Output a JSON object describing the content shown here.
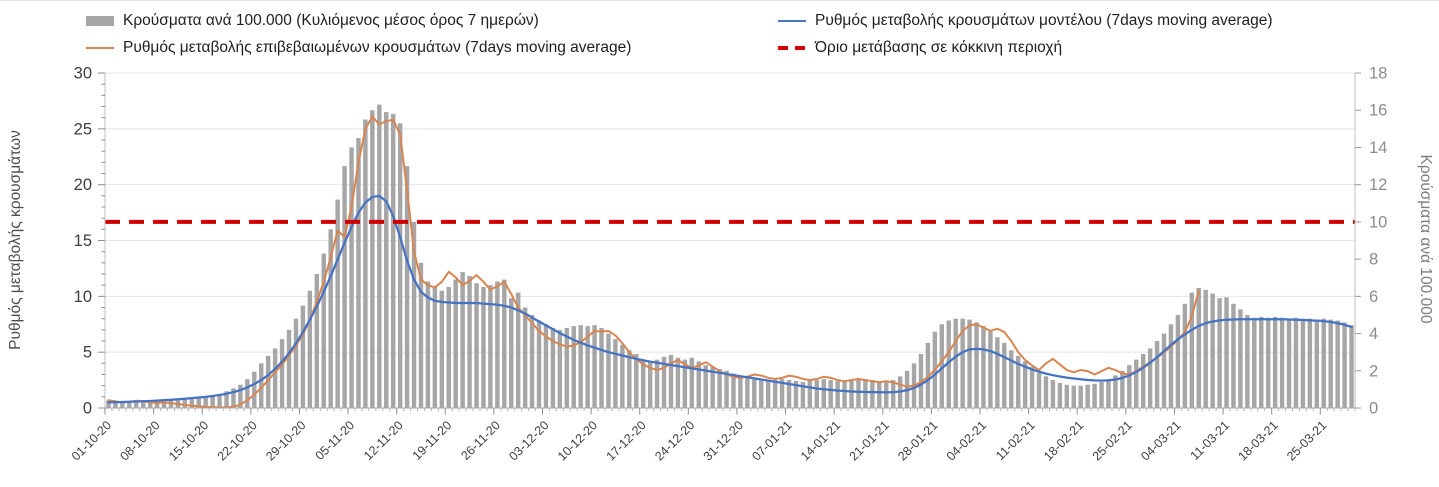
{
  "chart": {
    "legend": [
      {
        "label": "Κρούσματα ανά 100.000 (Κυλιόμενος μέσος όρος 7 ημερών)",
        "type": "bar",
        "color": "#a6a6a6"
      },
      {
        "label": "Ρυθμός μεταβολής επιβεβαιωμένων κρουσμάτων (7days moving average)",
        "type": "line",
        "color": "#d9854f"
      },
      {
        "label": "Ρυθμός μεταβολής κρουσμάτων μοντέλου (7days moving average)",
        "type": "line",
        "color": "#4472c4"
      },
      {
        "label": "Όριο μετάβασης σε κόκκινη περιοχή",
        "type": "dashed",
        "color": "#d00000"
      }
    ],
    "left_axis": {
      "title": "Ρυθμός μεταβολής κρουσμάτων",
      "ticks": [
        0,
        5,
        10,
        15,
        20,
        25,
        30
      ]
    },
    "right_axis": {
      "title": "Κρούσματα ανά 100.000",
      "ticks": [
        0,
        2,
        4,
        6,
        8,
        10,
        12,
        14,
        16,
        18
      ]
    }
  },
  "chart_data": {
    "type": "combo",
    "grid": true,
    "legend_position": "top",
    "left_ylim": [
      0,
      30
    ],
    "right_ylim": [
      0,
      18
    ],
    "x_tick_labels": [
      "01-10-20",
      "08-10-20",
      "15-10-20",
      "22-10-20",
      "29-10-20",
      "05-11-20",
      "12-11-20",
      "19-11-20",
      "26-11-20",
      "03-12-20",
      "10-12-20",
      "17-12-20",
      "24-12-20",
      "31-12-20",
      "07-01-21",
      "14-01-21",
      "21-01-21",
      "28-01-21",
      "04-02-21",
      "11-02-21",
      "18-02-21",
      "25-02-21",
      "04-03-21",
      "11-03-21",
      "18-03-21",
      "25-03-21"
    ],
    "days_per_tick": 7,
    "threshold": {
      "name": "Όριο μετάβασης σε κόκκινη περιοχή",
      "axis": "right",
      "value": 10,
      "color": "#d00000",
      "style": "dashed"
    },
    "series": [
      {
        "name": "Κρούσματα ανά 100.000 (Κυλιόμενος μέσος όρος 7 ημερών)",
        "type": "bar",
        "axis": "right",
        "color": "#a6a6a6",
        "values": [
          0.4,
          0.38,
          0.37,
          0.38,
          0.4,
          0.42,
          0.4,
          0.42,
          0.45,
          0.43,
          0.45,
          0.48,
          0.5,
          0.54,
          0.58,
          0.65,
          0.75,
          0.9,
          1.05,
          1.25,
          1.55,
          1.95,
          2.4,
          2.8,
          3.2,
          3.7,
          4.2,
          4.8,
          5.5,
          6.3,
          7.2,
          8.3,
          9.6,
          11.2,
          13.0,
          14.0,
          14.5,
          15.5,
          16.0,
          16.3,
          15.9,
          15.8,
          15.3,
          13.0,
          10.0,
          7.8,
          6.8,
          6.5,
          6.3,
          6.5,
          6.9,
          7.3,
          7.1,
          6.7,
          6.5,
          6.6,
          6.8,
          6.9,
          5.9,
          6.2,
          5.4,
          5.0,
          4.7,
          4.5,
          4.3,
          4.2,
          4.3,
          4.4,
          4.45,
          4.4,
          4.45,
          4.3,
          4.0,
          3.7,
          3.4,
          3.1,
          2.9,
          2.6,
          2.5,
          2.6,
          2.75,
          2.85,
          2.7,
          2.6,
          2.7,
          2.5,
          2.3,
          2.2,
          2.1,
          2.0,
          1.85,
          1.7,
          1.6,
          1.55,
          1.5,
          1.45,
          1.5,
          1.55,
          1.5,
          1.45,
          1.4,
          1.45,
          1.5,
          1.55,
          1.5,
          1.45,
          1.4,
          1.45,
          1.5,
          1.55,
          1.5,
          1.45,
          1.4,
          1.5,
          1.7,
          2.0,
          2.4,
          2.9,
          3.5,
          4.1,
          4.5,
          4.7,
          4.8,
          4.8,
          4.75,
          4.6,
          4.4,
          4.1,
          3.8,
          3.5,
          3.1,
          2.8,
          2.5,
          2.2,
          1.9,
          1.7,
          1.5,
          1.35,
          1.25,
          1.2,
          1.2,
          1.25,
          1.3,
          1.4,
          1.55,
          1.75,
          2.0,
          2.3,
          2.6,
          2.9,
          3.2,
          3.6,
          4.0,
          4.5,
          5.0,
          5.6,
          6.2,
          6.45,
          6.35,
          6.15,
          5.9,
          5.95,
          5.6,
          5.3,
          5.0,
          4.85,
          4.9,
          4.85,
          4.9,
          4.85,
          4.8,
          4.85,
          4.8,
          4.8,
          4.75,
          4.8,
          4.75,
          4.7,
          4.6,
          4.45
        ]
      },
      {
        "name": "Ρυθμός μεταβολής επιβεβαιωμένων κρουσμάτων (7days moving average)",
        "type": "line",
        "axis": "left",
        "color": "#d9854f",
        "values": [
          0.7,
          0.6,
          0.5,
          0.55,
          0.65,
          0.6,
          0.5,
          0.45,
          0.5,
          0.45,
          0.35,
          0.28,
          0.2,
          0.15,
          0.1,
          0.08,
          0.05,
          0.05,
          0.12,
          0.3,
          0.7,
          1.2,
          1.8,
          2.5,
          3.2,
          3.9,
          4.7,
          5.6,
          6.6,
          7.9,
          9.5,
          11.3,
          13.5,
          15.9,
          15.3,
          18.0,
          22.0,
          25.0,
          26.1,
          25.4,
          25.7,
          25.8,
          24.5,
          19.5,
          14.0,
          11.5,
          11.0,
          10.8,
          11.3,
          12.2,
          11.7,
          11.0,
          11.4,
          11.9,
          11.3,
          10.6,
          10.9,
          11.3,
          10.2,
          9.0,
          8.3,
          7.6,
          6.9,
          6.4,
          6.0,
          5.7,
          5.5,
          5.6,
          5.9,
          6.4,
          6.9,
          6.85,
          6.9,
          6.5,
          5.8,
          5.0,
          4.4,
          3.9,
          3.6,
          3.4,
          3.6,
          4.0,
          4.3,
          3.9,
          3.6,
          3.8,
          4.1,
          3.7,
          3.3,
          3.0,
          2.8,
          2.7,
          2.8,
          3.0,
          2.9,
          2.7,
          2.6,
          2.7,
          2.9,
          2.8,
          2.6,
          2.5,
          2.6,
          2.8,
          2.7,
          2.5,
          2.4,
          2.5,
          2.6,
          2.5,
          2.4,
          2.3,
          2.4,
          2.3,
          2.1,
          1.9,
          2.0,
          2.3,
          2.8,
          3.4,
          4.2,
          5.0,
          6.0,
          6.9,
          7.4,
          7.5,
          7.2,
          6.9,
          7.1,
          6.8,
          6.0,
          5.0,
          4.3,
          3.8,
          3.4,
          4.0,
          4.4,
          3.9,
          3.4,
          3.2,
          3.4,
          3.3,
          3.0,
          3.3,
          3.6,
          3.4,
          3.1,
          3.0,
          3.3,
          3.7,
          4.1,
          4.5,
          5.0,
          5.5,
          6.1,
          6.8,
          8.2,
          10.5
        ]
      },
      {
        "name": "Ρυθμός μεταβολής κρουσμάτων μοντέλου (7days moving average)",
        "type": "line",
        "axis": "left",
        "color": "#4472c4",
        "values": [
          0.5,
          0.52,
          0.54,
          0.56,
          0.58,
          0.6,
          0.63,
          0.66,
          0.7,
          0.74,
          0.78,
          0.83,
          0.88,
          0.94,
          1.0,
          1.08,
          1.17,
          1.28,
          1.42,
          1.6,
          1.85,
          2.15,
          2.5,
          2.95,
          3.5,
          4.15,
          4.9,
          5.8,
          6.8,
          7.9,
          9.1,
          10.4,
          11.8,
          13.3,
          14.8,
          16.2,
          17.5,
          18.4,
          18.9,
          19.0,
          18.5,
          17.2,
          15.3,
          13.2,
          11.5,
          10.4,
          9.9,
          9.6,
          9.5,
          9.45,
          9.4,
          9.4,
          9.4,
          9.4,
          9.35,
          9.3,
          9.25,
          9.15,
          9.0,
          8.75,
          8.45,
          8.1,
          7.75,
          7.4,
          7.05,
          6.7,
          6.4,
          6.1,
          5.85,
          5.6,
          5.4,
          5.2,
          5.0,
          4.85,
          4.7,
          4.55,
          4.4,
          4.28,
          4.16,
          4.05,
          3.95,
          3.85,
          3.75,
          3.65,
          3.55,
          3.45,
          3.35,
          3.25,
          3.15,
          3.05,
          2.95,
          2.85,
          2.75,
          2.65,
          2.55,
          2.45,
          2.35,
          2.25,
          2.15,
          2.05,
          1.95,
          1.85,
          1.75,
          1.68,
          1.62,
          1.56,
          1.52,
          1.48,
          1.45,
          1.43,
          1.42,
          1.41,
          1.4,
          1.42,
          1.48,
          1.6,
          1.8,
          2.1,
          2.5,
          3.0,
          3.55,
          4.1,
          4.6,
          5.0,
          5.25,
          5.3,
          5.25,
          5.1,
          4.85,
          4.55,
          4.25,
          3.95,
          3.7,
          3.45,
          3.25,
          3.08,
          2.94,
          2.82,
          2.72,
          2.64,
          2.57,
          2.51,
          2.47,
          2.45,
          2.47,
          2.55,
          2.7,
          2.92,
          3.22,
          3.6,
          4.05,
          4.55,
          5.1,
          5.65,
          6.15,
          6.6,
          7.0,
          7.35,
          7.6,
          7.75,
          7.85,
          7.9,
          7.93,
          7.95,
          7.95,
          7.95,
          7.95,
          7.95,
          7.95,
          7.95,
          7.93,
          7.9,
          7.88,
          7.85,
          7.82,
          7.78,
          7.7,
          7.6,
          7.45,
          7.25
        ]
      }
    ]
  }
}
